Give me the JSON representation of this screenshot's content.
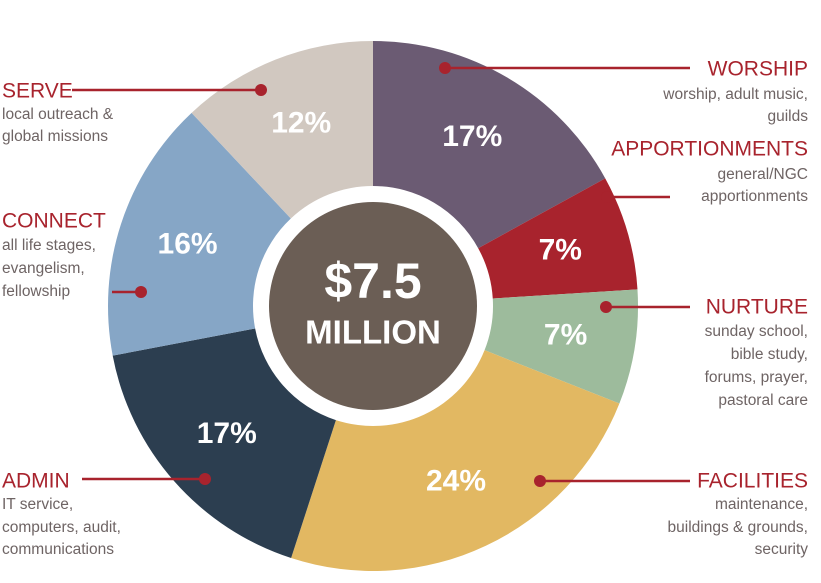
{
  "chart_data": {
    "type": "donut",
    "center_title": "$7.5",
    "center_subtitle": "MILLION",
    "categories": [
      "WORSHIP",
      "APPORTIONMENTS",
      "NURTURE",
      "FACILITIES",
      "ADMIN",
      "CONNECT",
      "SERVE"
    ],
    "descriptions": [
      [
        "worship, adult music,",
        "guilds"
      ],
      [
        "general/NGC",
        "apportionments"
      ],
      [
        "sunday school,",
        "bible study,",
        "forums, prayer,",
        "pastoral care"
      ],
      [
        "maintenance,",
        "buildings & grounds,",
        "security"
      ],
      [
        "IT service,",
        "computers, audit,",
        "communications"
      ],
      [
        "all life stages,",
        "evangelism,",
        "fellowship"
      ],
      [
        "local outreach &",
        "global missions"
      ]
    ],
    "values": [
      17,
      7,
      7,
      24,
      17,
      16,
      12
    ],
    "value_labels": [
      "17%",
      "7%",
      "7%",
      "24%",
      "17%",
      "16%",
      "12%"
    ],
    "colors": [
      "#6b5b73",
      "#a8232d",
      "#9dbb9c",
      "#e2b862",
      "#2c3e50",
      "#86a6c6",
      "#d1c8c0"
    ]
  }
}
